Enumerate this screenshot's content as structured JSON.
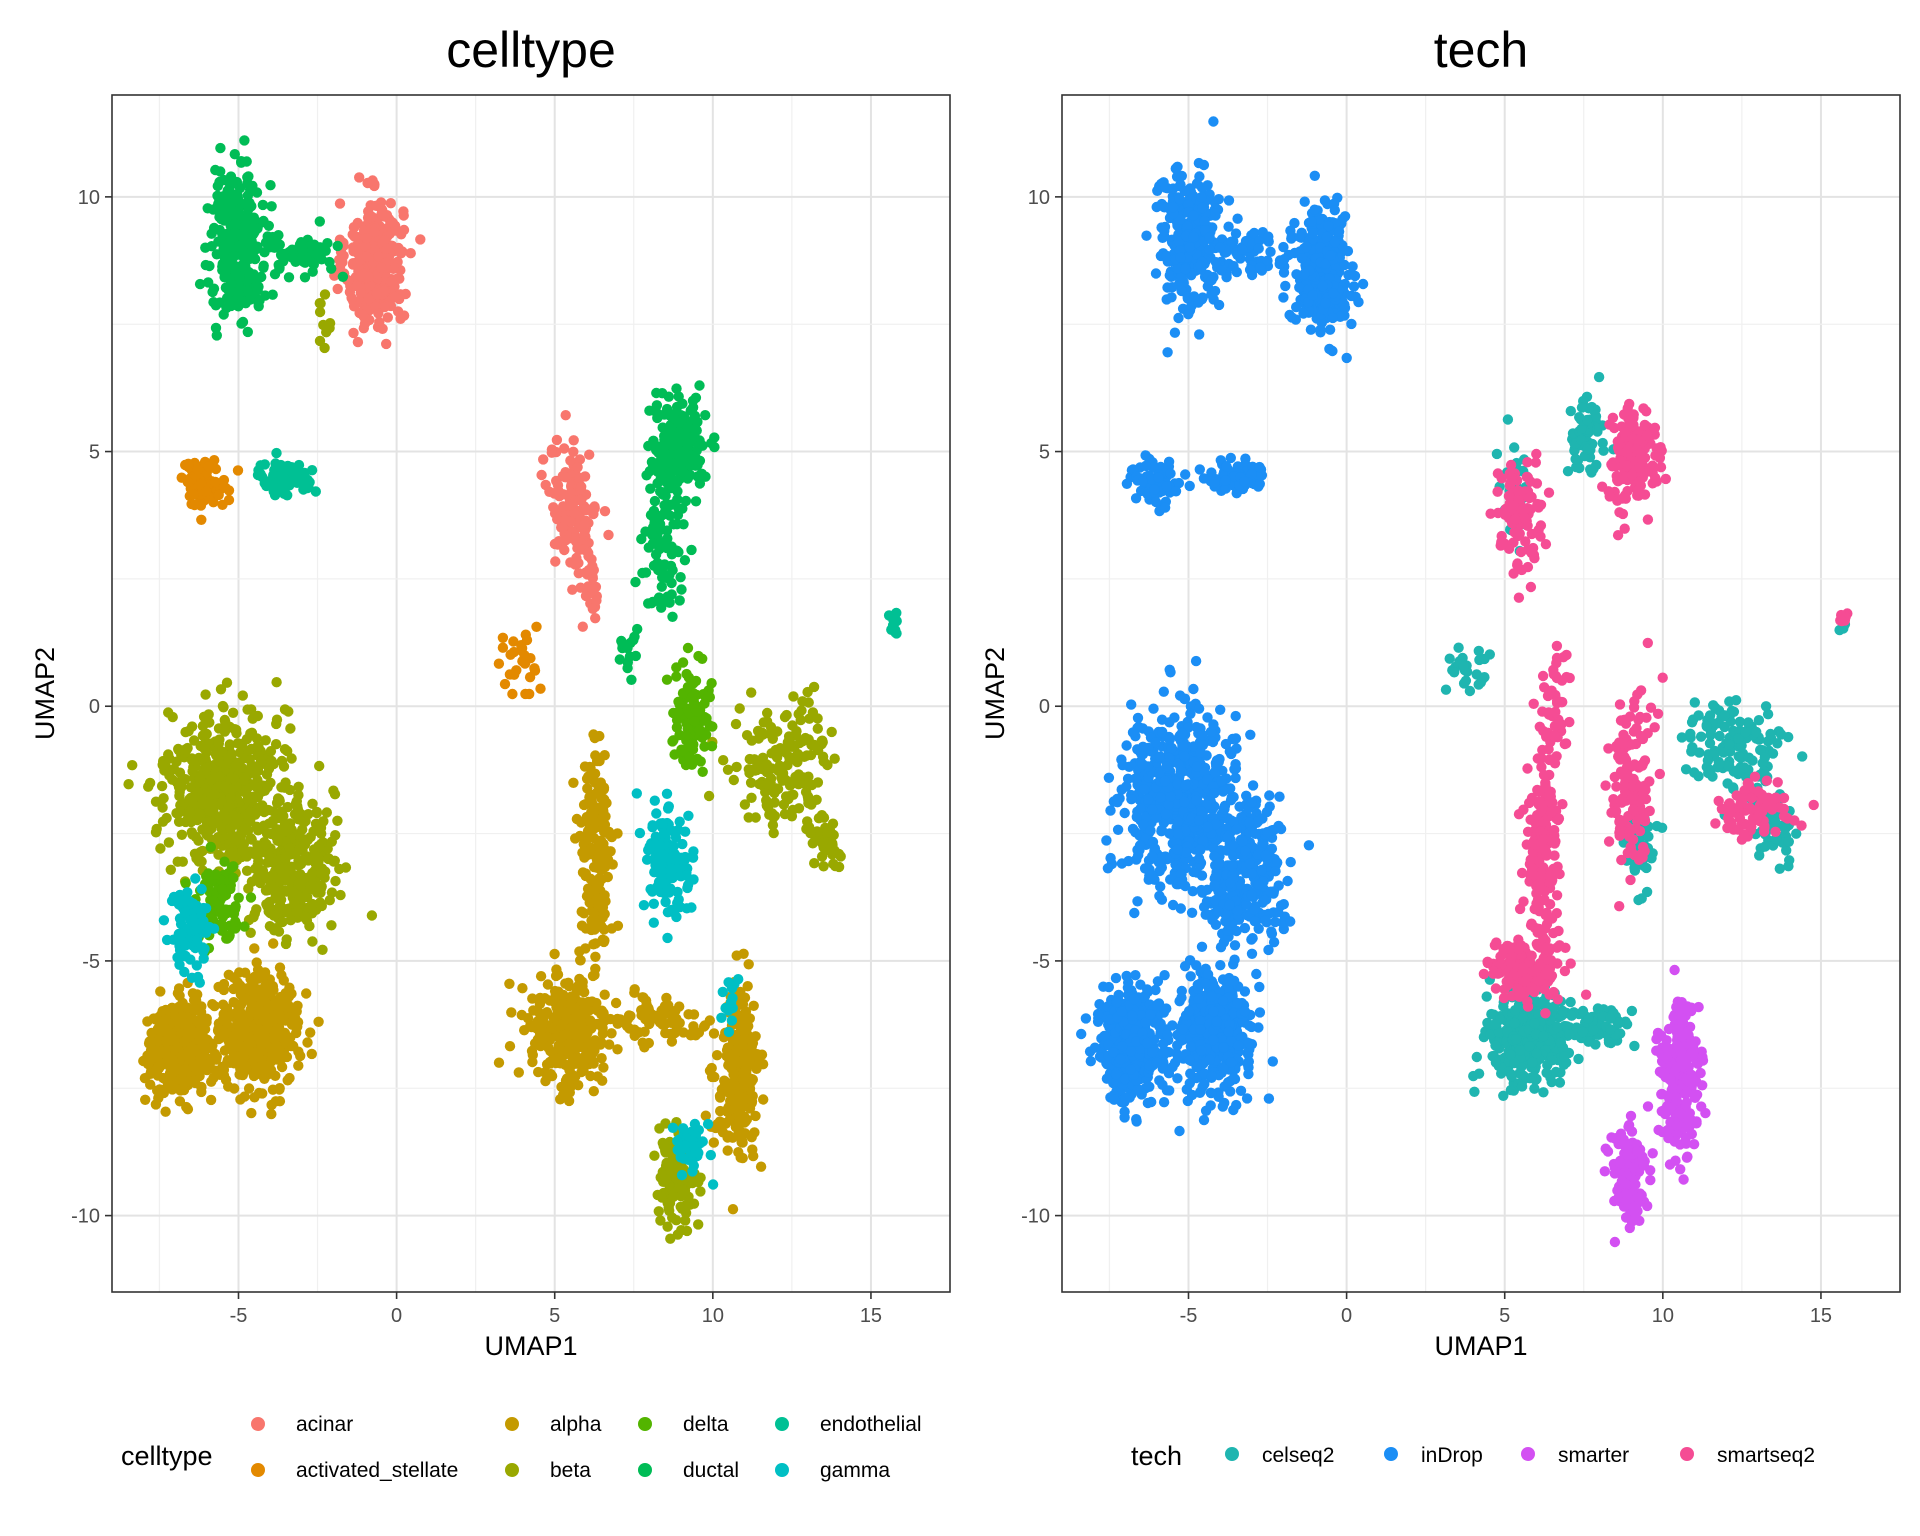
{
  "chart_data": [
    {
      "type": "scatter",
      "title": "celltype",
      "xlabel": "UMAP1",
      "ylabel": "UMAP2",
      "xlim": [
        -9,
        17.5
      ],
      "ylim": [
        -11.5,
        12
      ],
      "xticks": [
        -5,
        0,
        5,
        10,
        15
      ],
      "yticks": [
        -10,
        -5,
        0,
        5,
        10
      ],
      "xtick_labels": [
        "-5",
        "0",
        "5",
        "10",
        "15"
      ],
      "ytick_labels": [
        "-10",
        "-5",
        "0",
        "5",
        "10"
      ],
      "grid": true,
      "legend": {
        "title": "celltype",
        "placement": "bottom",
        "ncol": 4,
        "entries": [
          {
            "label": "acinar",
            "color": "#F8766D"
          },
          {
            "label": "activated_stellate",
            "color": "#E38900"
          },
          {
            "label": "alpha",
            "color": "#C49A00"
          },
          {
            "label": "beta",
            "color": "#99A800"
          },
          {
            "label": "delta",
            "color": "#53B400"
          },
          {
            "label": "ductal",
            "color": "#00BC56"
          },
          {
            "label": "endothelial",
            "color": "#00C094"
          },
          {
            "label": "gamma",
            "color": "#00BFC4"
          }
        ]
      },
      "series": [
        {
          "name": "acinar",
          "color": "#F8766D",
          "clusters": [
            {
              "cx": -0.7,
              "cy": 8.7,
              "sx": 0.6,
              "sy": 0.8,
              "n": 380
            },
            {
              "cx": 5.6,
              "cy": 3.9,
              "sx": 0.5,
              "sy": 0.8,
              "n": 140
            },
            {
              "cx": 6.1,
              "cy": 2.3,
              "sx": 0.25,
              "sy": 0.6,
              "n": 25
            }
          ]
        },
        {
          "name": "activated_stellate",
          "color": "#E38900",
          "clusters": [
            {
              "cx": -6.1,
              "cy": 4.4,
              "sx": 0.5,
              "sy": 0.3,
              "n": 80
            },
            {
              "cx": 3.9,
              "cy": 0.8,
              "sx": 0.5,
              "sy": 0.4,
              "n": 28
            }
          ]
        },
        {
          "name": "alpha",
          "color": "#C49A00",
          "clusters": [
            {
              "cx": -6.8,
              "cy": -6.7,
              "sx": 0.7,
              "sy": 0.6,
              "n": 420
            },
            {
              "cx": -4.3,
              "cy": -6.4,
              "sx": 0.8,
              "sy": 0.7,
              "n": 450
            },
            {
              "cx": 5.4,
              "cy": -6.4,
              "sx": 0.9,
              "sy": 0.8,
              "n": 300
            },
            {
              "cx": 6.3,
              "cy": -3.0,
              "sx": 0.35,
              "sy": 1.5,
              "n": 180
            },
            {
              "cx": 10.8,
              "cy": -7.2,
              "sx": 0.45,
              "sy": 1.1,
              "n": 240
            },
            {
              "cx": 8.5,
              "cy": -6.2,
              "sx": 1.0,
              "sy": 0.3,
              "n": 70
            }
          ]
        },
        {
          "name": "beta",
          "color": "#99A800",
          "clusters": [
            {
              "cx": -5.5,
              "cy": -1.6,
              "sx": 1.2,
              "sy": 1.0,
              "n": 520
            },
            {
              "cx": -3.3,
              "cy": -3.2,
              "sx": 0.9,
              "sy": 0.9,
              "n": 300
            },
            {
              "cx": 8.9,
              "cy": -9.2,
              "sx": 0.4,
              "sy": 0.6,
              "n": 130
            },
            {
              "cx": 12.3,
              "cy": -1.2,
              "sx": 1.1,
              "sy": 0.8,
              "n": 170
            },
            {
              "cx": 13.6,
              "cy": -2.6,
              "sx": 0.4,
              "sy": 0.3,
              "n": 40
            },
            {
              "cx": -2.3,
              "cy": 7.5,
              "sx": 0.2,
              "sy": 0.3,
              "n": 10
            }
          ]
        },
        {
          "name": "delta",
          "color": "#53B400",
          "clusters": [
            {
              "cx": 9.3,
              "cy": -0.2,
              "sx": 0.4,
              "sy": 0.7,
              "n": 100
            },
            {
              "cx": -5.6,
              "cy": -3.8,
              "sx": 0.5,
              "sy": 0.5,
              "n": 100
            }
          ]
        },
        {
          "name": "ductal",
          "color": "#00BC56",
          "clusters": [
            {
              "cx": -5.0,
              "cy": 9.1,
              "sx": 0.6,
              "sy": 0.9,
              "n": 280
            },
            {
              "cx": -3.1,
              "cy": 8.9,
              "sx": 0.8,
              "sy": 0.3,
              "n": 60
            },
            {
              "cx": 8.9,
              "cy": 5.1,
              "sx": 0.6,
              "sy": 0.6,
              "n": 210
            },
            {
              "cx": 8.4,
              "cy": 3.0,
              "sx": 0.4,
              "sy": 0.9,
              "n": 90
            },
            {
              "cx": 7.3,
              "cy": 1.1,
              "sx": 0.2,
              "sy": 0.4,
              "n": 15
            }
          ]
        },
        {
          "name": "endothelial",
          "color": "#00C094",
          "clusters": [
            {
              "cx": -3.5,
              "cy": 4.5,
              "sx": 0.6,
              "sy": 0.2,
              "n": 80
            },
            {
              "cx": 15.7,
              "cy": 1.65,
              "sx": 0.1,
              "sy": 0.2,
              "n": 10
            }
          ]
        },
        {
          "name": "gamma",
          "color": "#00BFC4",
          "clusters": [
            {
              "cx": 8.6,
              "cy": -3.0,
              "sx": 0.45,
              "sy": 0.7,
              "n": 140
            },
            {
              "cx": -6.5,
              "cy": -4.5,
              "sx": 0.4,
              "sy": 0.6,
              "n": 90
            },
            {
              "cx": 9.3,
              "cy": -8.6,
              "sx": 0.3,
              "sy": 0.4,
              "n": 40
            },
            {
              "cx": 10.5,
              "cy": -5.8,
              "sx": 0.2,
              "sy": 0.4,
              "n": 15
            }
          ]
        }
      ]
    },
    {
      "type": "scatter",
      "title": "tech",
      "xlabel": "UMAP1",
      "ylabel": "UMAP2",
      "xlim": [
        -9,
        17.5
      ],
      "ylim": [
        -11.5,
        12
      ],
      "xticks": [
        -5,
        0,
        5,
        10,
        15
      ],
      "yticks": [
        -10,
        -5,
        0,
        5,
        10
      ],
      "xtick_labels": [
        "-5",
        "0",
        "5",
        "10",
        "15"
      ],
      "ytick_labels": [
        "-10",
        "-5",
        "0",
        "5",
        "10"
      ],
      "grid": true,
      "legend": {
        "title": "tech",
        "placement": "bottom",
        "ncol": 4,
        "entries": [
          {
            "label": "celseq2",
            "color": "#1FB5B0"
          },
          {
            "label": "inDrop",
            "color": "#1B8EF5"
          },
          {
            "label": "smarter",
            "color": "#D350F2"
          },
          {
            "label": "smartseq2",
            "color": "#F54C94"
          }
        ]
      },
      "series": [
        {
          "name": "celseq2",
          "color": "#1FB5B0",
          "clusters": [
            {
              "cx": 5.8,
              "cy": -6.5,
              "sx": 0.9,
              "sy": 0.6,
              "n": 330
            },
            {
              "cx": 8.0,
              "cy": -6.3,
              "sx": 0.7,
              "sy": 0.3,
              "n": 60
            },
            {
              "cx": 12.2,
              "cy": -0.8,
              "sx": 1.0,
              "sy": 0.6,
              "n": 140
            },
            {
              "cx": 13.6,
              "cy": -2.4,
              "sx": 0.4,
              "sy": 0.4,
              "n": 40
            },
            {
              "cx": 7.6,
              "cy": 5.3,
              "sx": 0.4,
              "sy": 0.5,
              "n": 70
            },
            {
              "cx": 5.3,
              "cy": 4.2,
              "sx": 0.3,
              "sy": 0.7,
              "n": 45
            },
            {
              "cx": 3.8,
              "cy": 0.7,
              "sx": 0.4,
              "sy": 0.4,
              "n": 25
            },
            {
              "cx": 9.3,
              "cy": -2.8,
              "sx": 0.35,
              "sy": 0.6,
              "n": 40
            },
            {
              "cx": 15.7,
              "cy": 1.5,
              "sx": 0.1,
              "sy": 0.1,
              "n": 3
            }
          ]
        },
        {
          "name": "inDrop",
          "color": "#1B8EF5",
          "clusters": [
            {
              "cx": -5.0,
              "cy": 9.1,
              "sx": 0.7,
              "sy": 0.9,
              "n": 280
            },
            {
              "cx": -0.8,
              "cy": 8.5,
              "sx": 0.6,
              "sy": 0.8,
              "n": 320
            },
            {
              "cx": -3.1,
              "cy": 8.9,
              "sx": 0.8,
              "sy": 0.3,
              "n": 60
            },
            {
              "cx": -6.0,
              "cy": 4.4,
              "sx": 0.5,
              "sy": 0.3,
              "n": 80
            },
            {
              "cx": -3.5,
              "cy": 4.5,
              "sx": 0.6,
              "sy": 0.2,
              "n": 70
            },
            {
              "cx": -5.4,
              "cy": -1.8,
              "sx": 1.2,
              "sy": 1.1,
              "n": 560
            },
            {
              "cx": -3.3,
              "cy": -3.2,
              "sx": 0.9,
              "sy": 0.9,
              "n": 320
            },
            {
              "cx": -6.8,
              "cy": -6.6,
              "sx": 0.7,
              "sy": 0.7,
              "n": 420
            },
            {
              "cx": -4.2,
              "cy": -6.4,
              "sx": 0.8,
              "sy": 0.8,
              "n": 460
            }
          ]
        },
        {
          "name": "smarter",
          "color": "#D350F2",
          "clusters": [
            {
              "cx": 10.5,
              "cy": -7.2,
              "sx": 0.45,
              "sy": 1.0,
              "n": 240
            },
            {
              "cx": 8.9,
              "cy": -9.2,
              "sx": 0.4,
              "sy": 0.6,
              "n": 140
            }
          ]
        },
        {
          "name": "smartseq2",
          "color": "#F54C94",
          "clusters": [
            {
              "cx": 5.6,
              "cy": -5.2,
              "sx": 0.7,
              "sy": 0.4,
              "n": 180
            },
            {
              "cx": 6.2,
              "cy": -2.8,
              "sx": 0.35,
              "sy": 1.4,
              "n": 180
            },
            {
              "cx": 9.0,
              "cy": 4.9,
              "sx": 0.5,
              "sy": 0.7,
              "n": 160
            },
            {
              "cx": 5.5,
              "cy": 3.7,
              "sx": 0.5,
              "sy": 0.8,
              "n": 100
            },
            {
              "cx": 9.0,
              "cy": -1.5,
              "sx": 0.5,
              "sy": 1.2,
              "n": 130
            },
            {
              "cx": 12.8,
              "cy": -2.0,
              "sx": 0.7,
              "sy": 0.4,
              "n": 90
            },
            {
              "cx": 6.6,
              "cy": 0.0,
              "sx": 0.3,
              "sy": 0.8,
              "n": 40
            },
            {
              "cx": 15.7,
              "cy": 1.7,
              "sx": 0.1,
              "sy": 0.15,
              "n": 7
            }
          ]
        }
      ]
    }
  ]
}
